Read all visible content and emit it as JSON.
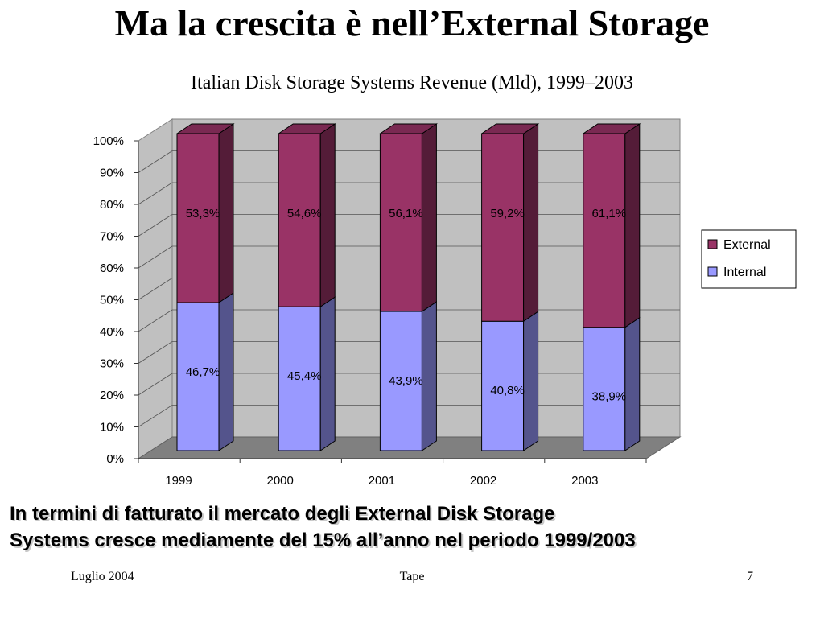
{
  "slide": {
    "title": "Ma la crescita è nell’External Storage",
    "body_lines": [
      "In termini di fatturato il mercato degli External Disk Storage",
      "Systems cresce mediamente del 15% all’anno nel periodo 1999/2003"
    ],
    "footer": {
      "left": "Luglio 2004",
      "center": "Tape",
      "right": "7"
    }
  },
  "chart_data": {
    "type": "bar",
    "stacked": true,
    "percent_stacked": true,
    "three_d": true,
    "title": "Italian Disk Storage Systems Revenue (Mld), 1999–2003",
    "categories": [
      "1999",
      "2000",
      "2001",
      "2002",
      "2003"
    ],
    "series": [
      {
        "name": "Internal",
        "values": [
          46.7,
          45.4,
          43.9,
          40.8,
          38.9
        ],
        "labels": [
          "46,7%",
          "45,4%",
          "43,9%",
          "40,8%",
          "38,9%"
        ],
        "color": "#9999ff"
      },
      {
        "name": "External",
        "values": [
          53.3,
          54.6,
          56.1,
          59.2,
          61.1
        ],
        "labels": [
          "53,3%",
          "54,6%",
          "56,1%",
          "59,2%",
          "61,1%"
        ],
        "color": "#993366"
      }
    ],
    "y_ticks": [
      "0%",
      "10%",
      "20%",
      "30%",
      "40%",
      "50%",
      "60%",
      "70%",
      "80%",
      "90%",
      "100%"
    ],
    "ylim": [
      0,
      100
    ],
    "grid": true,
    "legend_placement": "right",
    "legend_order": [
      "External",
      "Internal"
    ]
  }
}
